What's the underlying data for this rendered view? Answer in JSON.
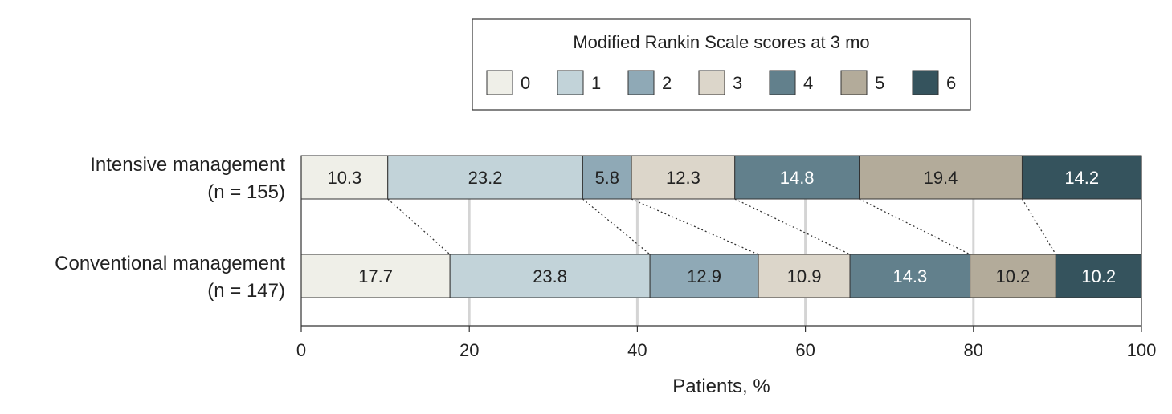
{
  "chart_data": {
    "type": "bar",
    "orientation": "horizontal",
    "stacked": true,
    "legend": {
      "title": "Modified Rankin Scale scores at 3 mo",
      "position": "top",
      "entries": [
        "0",
        "1",
        "2",
        "3",
        "4",
        "5",
        "6"
      ]
    },
    "colors": [
      "#efefe8",
      "#c2d3d9",
      "#8fa9b6",
      "#dcd6ca",
      "#62808c",
      "#b3ab9a",
      "#35535d"
    ],
    "label_colors": [
      "#222222",
      "#222222",
      "#222222",
      "#222222",
      "#ffffff",
      "#222222",
      "#ffffff"
    ],
    "categories": [
      {
        "name": "Intensive management",
        "n": "(n = 155)"
      },
      {
        "name": "Conventional management",
        "n": "(n = 147)"
      }
    ],
    "series": [
      {
        "name": "0",
        "values": [
          10.3,
          17.7
        ]
      },
      {
        "name": "1",
        "values": [
          23.2,
          23.8
        ]
      },
      {
        "name": "2",
        "values": [
          5.8,
          12.9
        ]
      },
      {
        "name": "3",
        "values": [
          12.3,
          10.9
        ]
      },
      {
        "name": "4",
        "values": [
          14.8,
          14.3
        ]
      },
      {
        "name": "5",
        "values": [
          19.4,
          10.2
        ]
      },
      {
        "name": "6",
        "values": [
          14.2,
          10.2
        ]
      }
    ],
    "xlabel": "Patients, %",
    "xlim": [
      0,
      100
    ],
    "xticks": [
      0,
      20,
      40,
      60,
      80,
      100
    ],
    "grid": true,
    "connectors": "dotted"
  }
}
